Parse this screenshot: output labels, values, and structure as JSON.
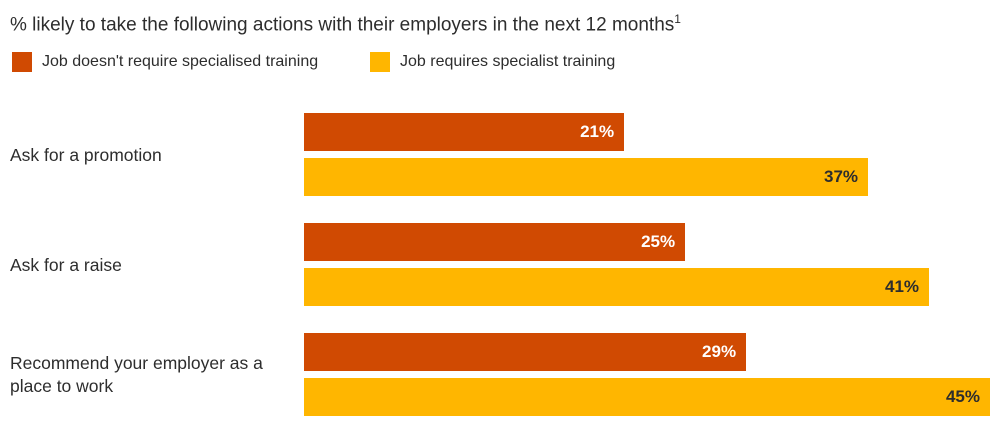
{
  "chart_data": {
    "type": "bar",
    "orientation": "horizontal",
    "title": "% likely to take the following actions with their employers in the next 12 months",
    "title_footnote": "1",
    "categories": [
      "Ask for a promotion",
      "Ask for a raise",
      "Recommend your employer as a place to work"
    ],
    "series": [
      {
        "name": "Job doesn't require specialised training",
        "color": "#D04A02",
        "values": [
          21,
          25,
          29
        ],
        "labels": [
          "21%",
          "25%",
          "29%"
        ],
        "label_color": "#ffffff"
      },
      {
        "name": "Job requires specialist training",
        "color": "#FFB600",
        "values": [
          37,
          41,
          45
        ],
        "labels": [
          "37%",
          "41%",
          "45%"
        ],
        "label_color": "#2d2d2d"
      }
    ],
    "xlim": [
      0,
      45
    ],
    "grid": false,
    "legend_position": "top-left"
  }
}
